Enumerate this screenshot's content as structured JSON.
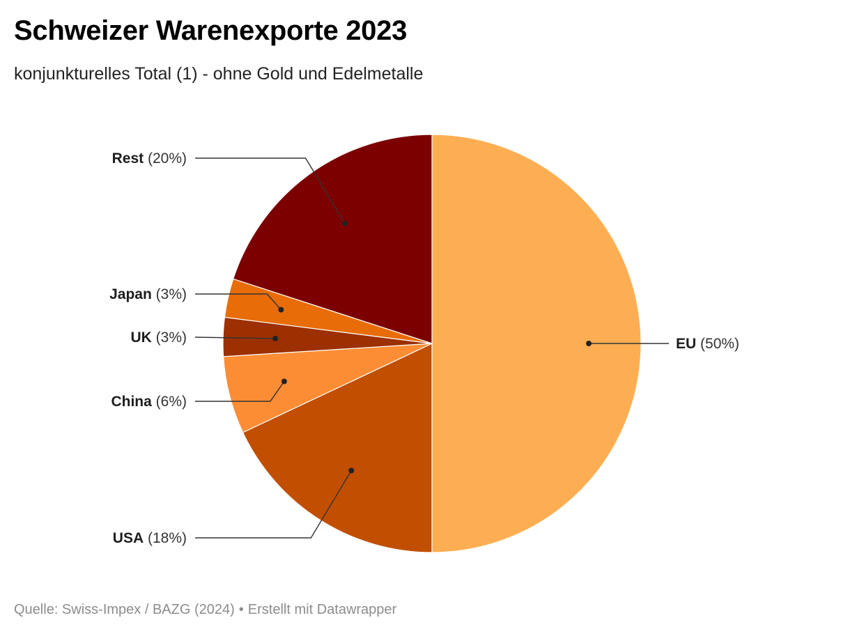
{
  "header": {
    "title": "Schweizer Warenexporte 2023",
    "subtitle": "konjunkturelles Total (1) - ohne Gold und Edelmetalle"
  },
  "footer": {
    "source": "Quelle: Swiss-Impex / BAZG (2024)",
    "separator": "•",
    "credit": "Erstellt mit Datawrapper"
  },
  "chart_data": {
    "type": "pie",
    "title": "Schweizer Warenexporte 2023",
    "subtitle": "konjunkturelles Total (1) - ohne Gold und Edelmetalle",
    "unit": "%",
    "start": "12 o'clock",
    "direction": "clockwise",
    "slices": [
      {
        "label": "EU",
        "value": 50,
        "display": "(50%)",
        "color": "#fdae53",
        "label_side": "right"
      },
      {
        "label": "USA",
        "value": 18,
        "display": "(18%)",
        "color": "#c24e00",
        "label_side": "left"
      },
      {
        "label": "China",
        "value": 6,
        "display": "(6%)",
        "color": "#fd8d34",
        "label_side": "left"
      },
      {
        "label": "UK",
        "value": 3,
        "display": "(3%)",
        "color": "#9c3000",
        "label_side": "left"
      },
      {
        "label": "Japan",
        "value": 3,
        "display": "(3%)",
        "color": "#e86c08",
        "label_side": "left"
      },
      {
        "label": "Rest",
        "value": 20,
        "display": "(20%)",
        "color": "#7c0000",
        "label_side": "left"
      }
    ]
  }
}
